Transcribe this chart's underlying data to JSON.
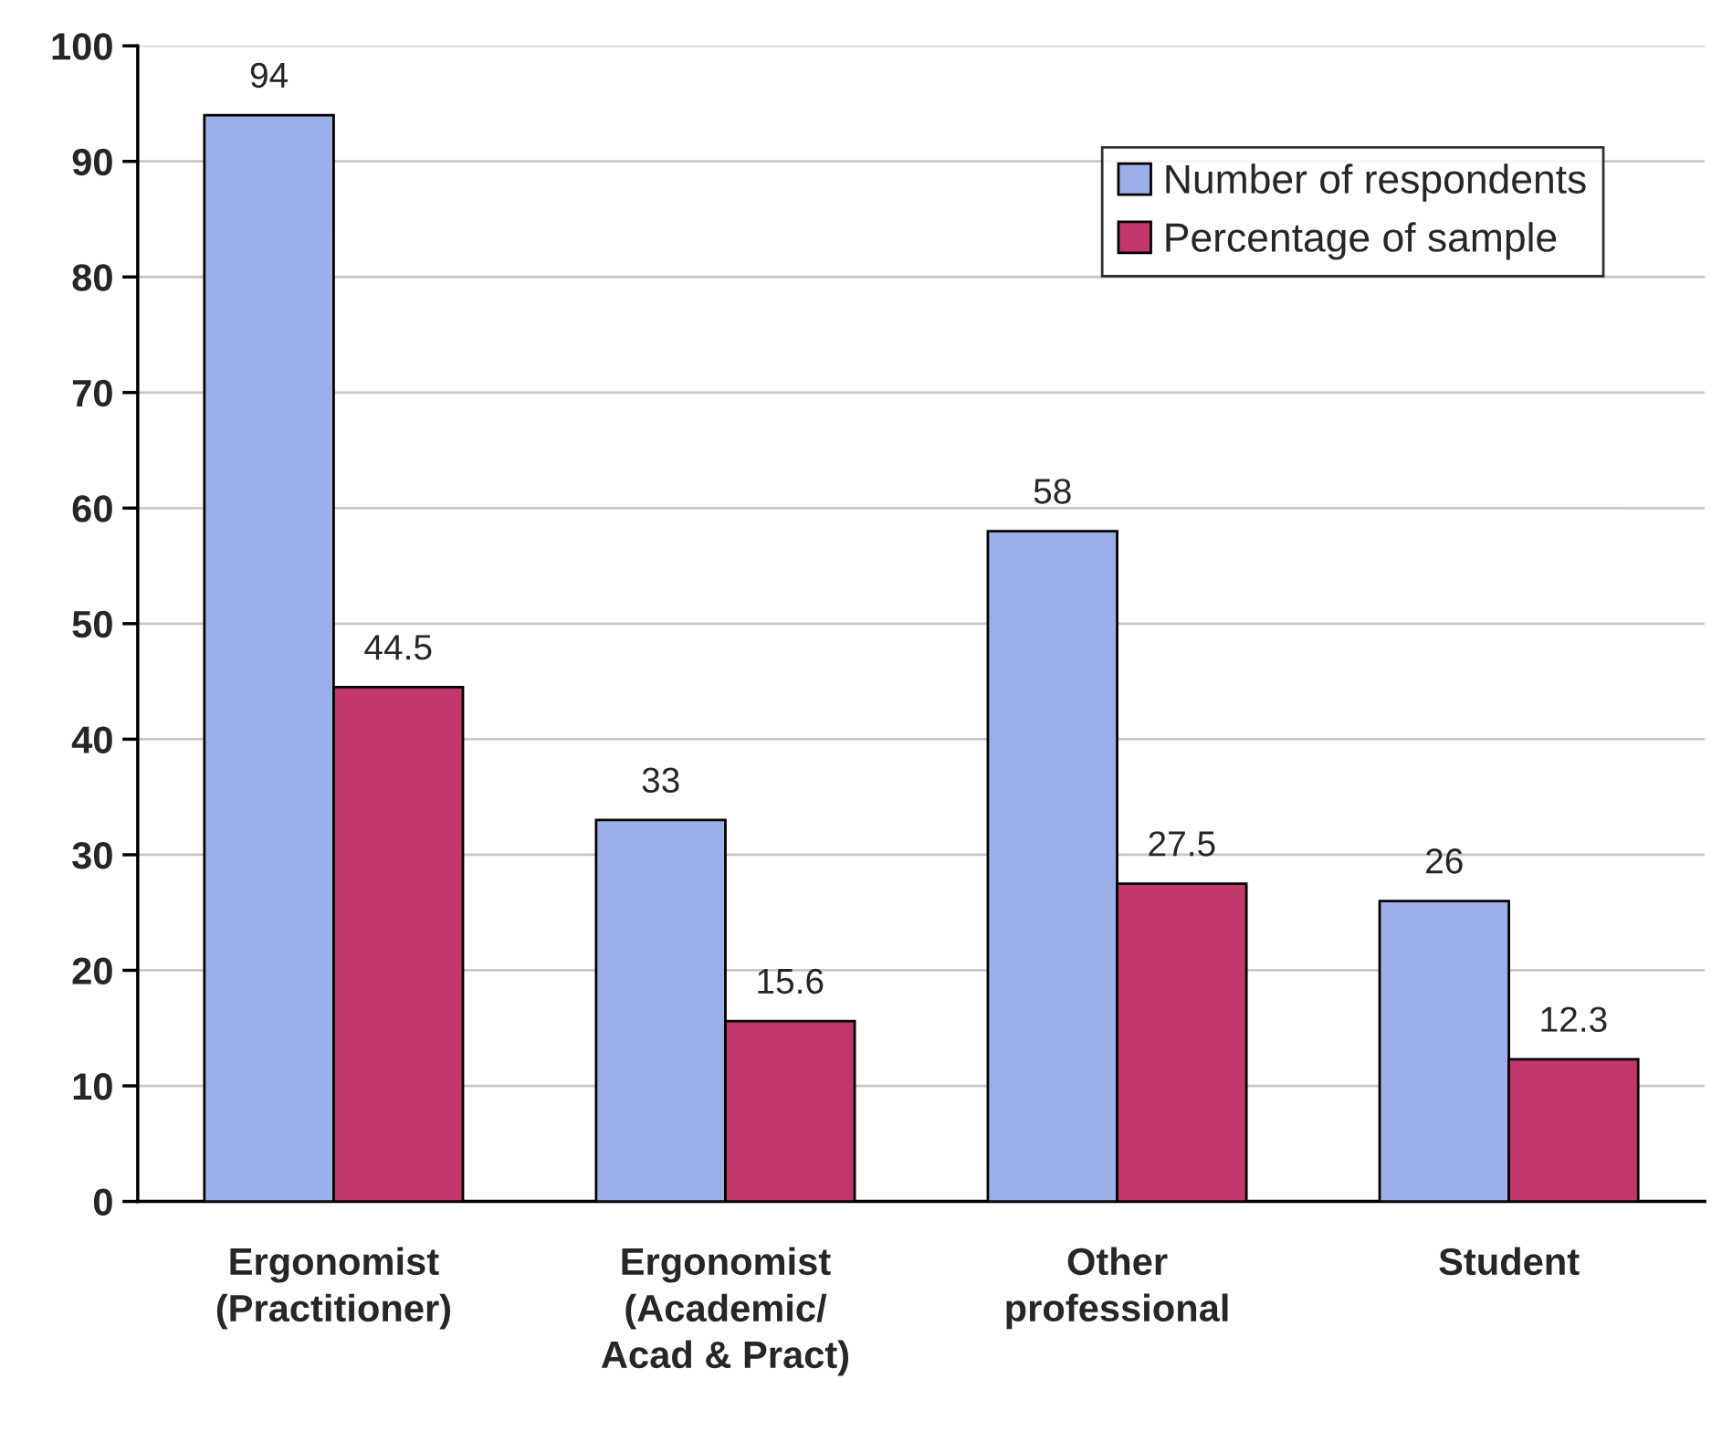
{
  "chart_data": {
    "type": "bar",
    "categories": [
      "Ergonomist\n(Practitioner)",
      "Ergonomist\n(Academic/\nAcad & Pract)",
      "Other\nprofessional",
      "Student"
    ],
    "series": [
      {
        "name": "Number of respondents",
        "color": "#9dafe8",
        "values": [
          94,
          33,
          58,
          26
        ]
      },
      {
        "name": "Percentage of sample",
        "color": "#c2386c",
        "values": [
          44.5,
          15.6,
          27.5,
          12.3
        ]
      }
    ],
    "ylim": [
      0,
      100
    ],
    "yticks": [
      0,
      10,
      20,
      30,
      40,
      50,
      60,
      70,
      80,
      90,
      100
    ],
    "grid": "y",
    "legend": "top right",
    "data_labels": true
  }
}
